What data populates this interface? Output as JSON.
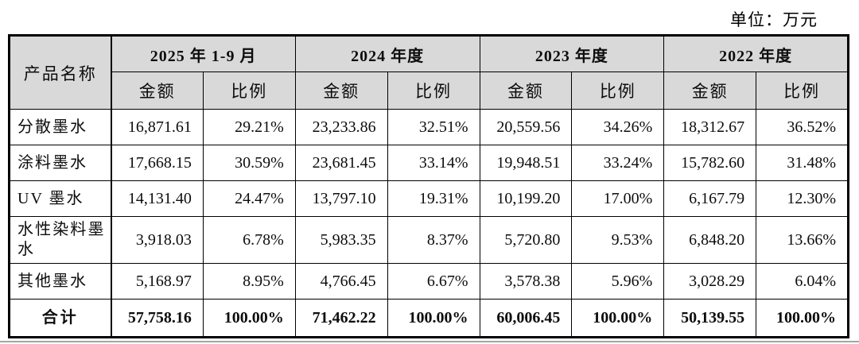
{
  "unit_label": "单位：万元",
  "table": {
    "product_header": "产品名称",
    "col_groups": [
      {
        "label": "2025 年 1-9 月"
      },
      {
        "label": "2024 年度"
      },
      {
        "label": "2023 年度"
      },
      {
        "label": "2022 年度"
      }
    ],
    "sub_headers": [
      "金额",
      "比例"
    ],
    "rows": [
      {
        "name": "分散墨水",
        "values": [
          "16,871.61",
          "29.21%",
          "23,233.86",
          "32.51%",
          "20,559.56",
          "34.26%",
          "18,312.67",
          "36.52%"
        ]
      },
      {
        "name": "涂料墨水",
        "values": [
          "17,668.15",
          "30.59%",
          "23,681.45",
          "33.14%",
          "19,948.51",
          "33.24%",
          "15,782.60",
          "31.48%"
        ]
      },
      {
        "name": "UV 墨水",
        "values": [
          "14,131.40",
          "24.47%",
          "13,797.10",
          "19.31%",
          "10,199.20",
          "17.00%",
          "6,167.79",
          "12.30%"
        ]
      },
      {
        "name": "水性染料墨水",
        "values": [
          "3,918.03",
          "6.78%",
          "5,983.35",
          "8.37%",
          "5,720.80",
          "9.53%",
          "6,848.20",
          "13.66%"
        ]
      },
      {
        "name": "其他墨水",
        "values": [
          "5,168.97",
          "8.95%",
          "4,766.45",
          "6.67%",
          "3,578.38",
          "5.96%",
          "3,028.29",
          "6.04%"
        ]
      }
    ],
    "total_row": {
      "name": "合计",
      "values": [
        "57,758.16",
        "100.00%",
        "71,462.22",
        "100.00%",
        "60,006.45",
        "100.00%",
        "50,139.55",
        "100.00%"
      ]
    }
  },
  "colors": {
    "header_bg": "#d9d9d9",
    "border": "#000000",
    "page_bg": "#ffffff"
  }
}
